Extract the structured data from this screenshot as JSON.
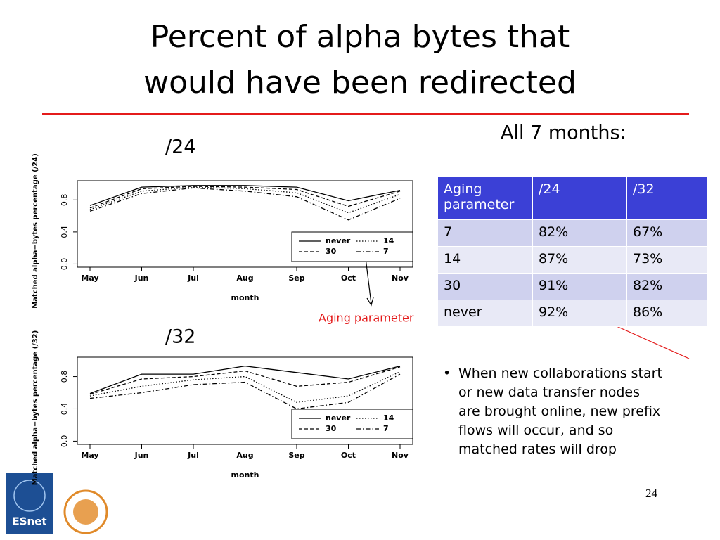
{
  "title": [
    "Percent of alpha bytes that",
    "would have been redirected"
  ],
  "chart_data": [
    {
      "type": "line",
      "title": "/24",
      "x_label": "month",
      "y_label": "Matched alpha−bytes percentage (/24)",
      "categories": [
        "May",
        "Jun",
        "Jul",
        "Aug",
        "Sep",
        "Oct",
        "Nov"
      ],
      "ylim": [
        -0.04,
        1.04
      ],
      "yticks": [
        {
          "value": 0,
          "label": "0.0"
        },
        0.4,
        0.8
      ],
      "series": [
        {
          "name": "never",
          "color": "#000000",
          "dash": "solid",
          "values": [
            0.73,
            0.96,
            0.98,
            0.98,
            0.96,
            0.79,
            0.92
          ]
        },
        {
          "name": "30",
          "color": "#000000",
          "dash": "dashed",
          "values": [
            0.7,
            0.94,
            0.97,
            0.96,
            0.93,
            0.72,
            0.91
          ]
        },
        {
          "name": "14",
          "color": "#000000",
          "dash": "dotted",
          "values": [
            0.68,
            0.91,
            0.96,
            0.94,
            0.89,
            0.64,
            0.87
          ]
        },
        {
          "name": "7",
          "color": "#000000",
          "dash": "dotdash",
          "values": [
            0.66,
            0.88,
            0.95,
            0.91,
            0.84,
            0.55,
            0.82
          ]
        }
      ],
      "legend": "bottom-right"
    },
    {
      "type": "line",
      "title": "/32",
      "x_label": "month",
      "y_label": "Matched alpha−bytes percentage (/32)",
      "categories": [
        "May",
        "Jun",
        "Jul",
        "Aug",
        "Sep",
        "Oct",
        "Nov"
      ],
      "ylim": [
        -0.04,
        1.04
      ],
      "yticks": [
        {
          "value": 0,
          "label": "0.0"
        },
        0.4,
        0.8
      ],
      "series": [
        {
          "name": "never",
          "color": "#000000",
          "dash": "solid",
          "values": [
            0.59,
            0.83,
            0.83,
            0.93,
            0.85,
            0.77,
            0.93
          ]
        },
        {
          "name": "30",
          "color": "#000000",
          "dash": "dashed",
          "values": [
            0.58,
            0.77,
            0.8,
            0.87,
            0.68,
            0.73,
            0.92
          ]
        },
        {
          "name": "14",
          "color": "#000000",
          "dash": "dotted",
          "values": [
            0.56,
            0.68,
            0.76,
            0.8,
            0.48,
            0.56,
            0.86
          ]
        },
        {
          "name": "7",
          "color": "#000000",
          "dash": "dotdash",
          "values": [
            0.53,
            0.6,
            0.7,
            0.73,
            0.4,
            0.48,
            0.83
          ]
        }
      ],
      "legend": "bottom-right"
    }
  ],
  "annotation": "Aging parameter",
  "table_caption": "All 7 months:",
  "table": {
    "header": [
      "Aging parameter",
      "/24",
      "/32"
    ],
    "rows": [
      [
        "7",
        "82%",
        "67%"
      ],
      [
        "14",
        "87%",
        "73%"
      ],
      [
        "30",
        "91%",
        "82%"
      ],
      [
        "never",
        "92%",
        "86%"
      ]
    ]
  },
  "bullet": "When new collaborations start or new data transfer nodes are brought online, new prefix flows will occur, and so matched rates will drop",
  "logo": "ESnet",
  "page_number": "24"
}
